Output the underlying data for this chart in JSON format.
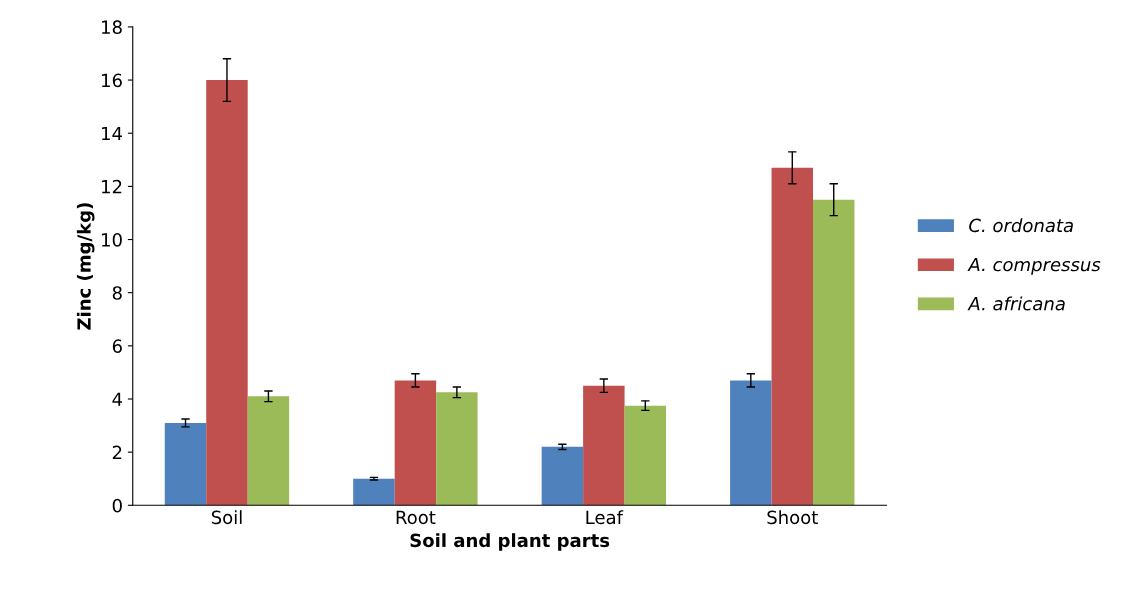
{
  "chart_data": {
    "type": "bar",
    "xlabel": "Soil and plant parts",
    "ylabel": "Zinc (mg/kg)",
    "categories": [
      "Soil",
      "Root",
      "Leaf",
      "Shoot"
    ],
    "series": [
      {
        "name": "C. ordonata",
        "color": "#4f81bd",
        "values": [
          3.1,
          1.0,
          2.2,
          4.7
        ],
        "errors": [
          0.15,
          0.05,
          0.1,
          0.25
        ]
      },
      {
        "name": "A. compressus",
        "color": "#c0504d",
        "values": [
          16.0,
          4.7,
          4.5,
          12.7
        ],
        "errors": [
          0.8,
          0.25,
          0.25,
          0.6
        ]
      },
      {
        "name": "A. africana",
        "color": "#9bbb59",
        "values": [
          4.1,
          4.25,
          3.75,
          11.5
        ],
        "errors": [
          0.2,
          0.2,
          0.18,
          0.6
        ]
      }
    ],
    "ylim": [
      0,
      18
    ],
    "yticks": [
      0,
      2,
      4,
      6,
      8,
      10,
      12,
      14,
      16,
      18
    ],
    "grid": false,
    "legend": "right"
  }
}
